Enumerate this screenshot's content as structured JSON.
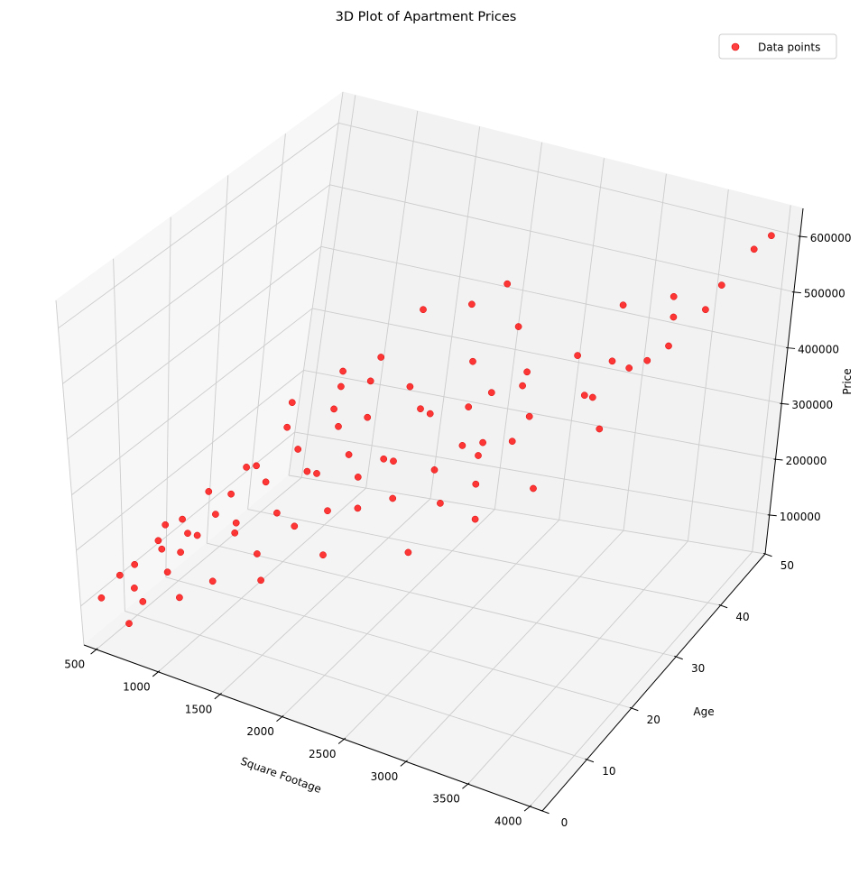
{
  "chart_data": {
    "type": "scatter",
    "title": "3D Plot of Apartment Prices",
    "xlabel": "Square Footage",
    "ylabel": "Age",
    "zlabel": "Price",
    "xlim": [
      400,
      4100
    ],
    "ylim": [
      0,
      50
    ],
    "zlim": [
      30000,
      650000
    ],
    "x_ticks": [
      "500",
      "1000",
      "1500",
      "2000",
      "2500",
      "3000",
      "3500",
      "4000"
    ],
    "y_ticks": [
      "0",
      "10",
      "20",
      "30",
      "40",
      "50"
    ],
    "z_ticks": [
      "100000",
      "200000",
      "300000",
      "400000",
      "500000",
      "600000"
    ],
    "grid": true,
    "legend": {
      "position": "top-right",
      "entries": [
        "Data points"
      ]
    },
    "colors": {
      "points": "#ff0000",
      "pane": "#f2f2f2",
      "grid": "#cccccc"
    },
    "series": [
      {
        "name": "Data points",
        "points": [
          [
            3950,
            48,
            610000
          ],
          [
            3900,
            46,
            600000
          ],
          [
            3750,
            44,
            545000
          ],
          [
            3500,
            48,
            455000
          ],
          [
            3400,
            44,
            470000
          ],
          [
            3350,
            45,
            495000
          ],
          [
            3600,
            38,
            480000
          ],
          [
            3300,
            42,
            405000
          ],
          [
            3100,
            40,
            410000
          ],
          [
            3200,
            41,
            395000
          ],
          [
            3000,
            44,
            470000
          ],
          [
            3150,
            35,
            390000
          ],
          [
            2900,
            38,
            425000
          ],
          [
            3050,
            36,
            380000
          ],
          [
            2850,
            30,
            380000
          ],
          [
            2700,
            33,
            425000
          ],
          [
            2800,
            28,
            350000
          ],
          [
            2600,
            35,
            380000
          ],
          [
            2400,
            34,
            365000
          ],
          [
            2650,
            25,
            340000
          ],
          [
            2750,
            22,
            320000
          ],
          [
            2500,
            30,
            315000
          ],
          [
            2300,
            32,
            350000
          ],
          [
            2450,
            27,
            330000
          ],
          [
            2200,
            35,
            400000
          ],
          [
            2350,
            24,
            305000
          ],
          [
            2550,
            20,
            290000
          ],
          [
            2150,
            28,
            360000
          ],
          [
            2100,
            22,
            320000
          ],
          [
            2250,
            18,
            295000
          ],
          [
            2000,
            30,
            345000
          ],
          [
            1950,
            24,
            300000
          ],
          [
            2050,
            16,
            280000
          ],
          [
            1800,
            33,
            350000
          ],
          [
            1900,
            20,
            295000
          ],
          [
            1700,
            27,
            335000
          ],
          [
            1850,
            15,
            270000
          ],
          [
            1750,
            22,
            310000
          ],
          [
            1650,
            18,
            300000
          ],
          [
            1600,
            30,
            370000
          ],
          [
            1550,
            25,
            325000
          ],
          [
            1500,
            20,
            280000
          ],
          [
            1700,
            12,
            255000
          ],
          [
            1450,
            15,
            240000
          ],
          [
            1400,
            28,
            325000
          ],
          [
            1350,
            22,
            295000
          ],
          [
            1300,
            10,
            230000
          ],
          [
            1250,
            18,
            260000
          ],
          [
            1550,
            8,
            225000
          ],
          [
            1200,
            13,
            220000
          ],
          [
            1150,
            25,
            300000
          ],
          [
            1100,
            20,
            265000
          ],
          [
            1050,
            16,
            240000
          ],
          [
            1000,
            10,
            205000
          ],
          [
            950,
            22,
            240000
          ],
          [
            900,
            6,
            160000
          ],
          [
            1000,
            14,
            215000
          ],
          [
            850,
            12,
            185000
          ],
          [
            800,
            18,
            215000
          ],
          [
            750,
            9,
            170000
          ],
          [
            700,
            4,
            130000
          ],
          [
            650,
            11,
            165000
          ],
          [
            600,
            7,
            145000
          ],
          [
            700,
            15,
            180000
          ],
          [
            800,
            3,
            120000
          ],
          [
            550,
            5,
            135000
          ],
          [
            600,
            14,
            170000
          ],
          [
            500,
            2,
            110000
          ],
          [
            750,
            1,
            90000
          ],
          [
            900,
            9,
            175000
          ],
          [
            1600,
            40,
            420000
          ],
          [
            1900,
            42,
            430000
          ],
          [
            2050,
            45,
            450000
          ],
          [
            2350,
            40,
            430000
          ],
          [
            1200,
            35,
            330000
          ],
          [
            1450,
            36,
            360000
          ],
          [
            1000,
            30,
            300000
          ],
          [
            1300,
            32,
            330000
          ],
          [
            2900,
            18,
            300000
          ],
          [
            3200,
            22,
            340000
          ],
          [
            2000,
            10,
            240000
          ],
          [
            1650,
            6,
            200000
          ],
          [
            2600,
            12,
            270000
          ],
          [
            1300,
            5,
            180000
          ],
          [
            3400,
            30,
            390000
          ],
          [
            1100,
            3,
            150000
          ]
        ]
      }
    ]
  }
}
